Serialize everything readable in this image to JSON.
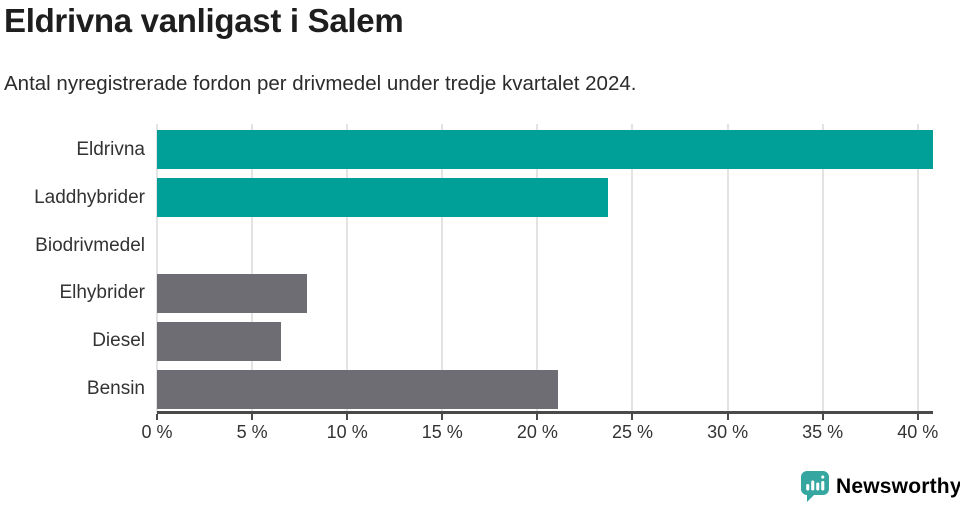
{
  "header": {
    "title": "Eldrivna vanligast i Salem",
    "subtitle": "Antal nyregistrerade fordon per drivmedel under tredje kvartalet 2024."
  },
  "chart_data": {
    "type": "bar",
    "orientation": "horizontal",
    "title": "Eldrivna vanligast i Salem",
    "subtitle": "Antal nyregistrerade fordon per drivmedel under tredje kvartalet 2024.",
    "categories": [
      "Eldrivna",
      "Laddhybrider",
      "Biodrivmedel",
      "Elhybrider",
      "Diesel",
      "Bensin"
    ],
    "values": [
      40.8,
      23.7,
      0,
      7.9,
      6.5,
      21.1
    ],
    "unit": "%",
    "xlabel": "",
    "ylabel": "",
    "xlim": [
      0,
      40.8
    ],
    "xticks": [
      0,
      5,
      10,
      15,
      20,
      25,
      30,
      35,
      40
    ],
    "xtick_labels": [
      "0 %",
      "5 %",
      "10 %",
      "15 %",
      "20 %",
      "25 %",
      "30 %",
      "35 %",
      "40 %"
    ],
    "grid": true,
    "legend": "none",
    "bar_colors": [
      "#00a099",
      "#00a099",
      "#6d6d73",
      "#6d6d73",
      "#6d6d73",
      "#6d6d73"
    ]
  },
  "colors": {
    "highlight": "#00a099",
    "neutral": "#6d6d73",
    "axis": "#4a4a4a",
    "gridline": "#e3e3e3",
    "text_dark": "#1e1e1e",
    "text_body": "#333333",
    "logo_icon": "#35a7a0",
    "logo_text": "#3f9f9c"
  },
  "footer": {
    "brand": "Newsworthy",
    "logo_icon": "bar-chart-speech-bubble-icon"
  }
}
